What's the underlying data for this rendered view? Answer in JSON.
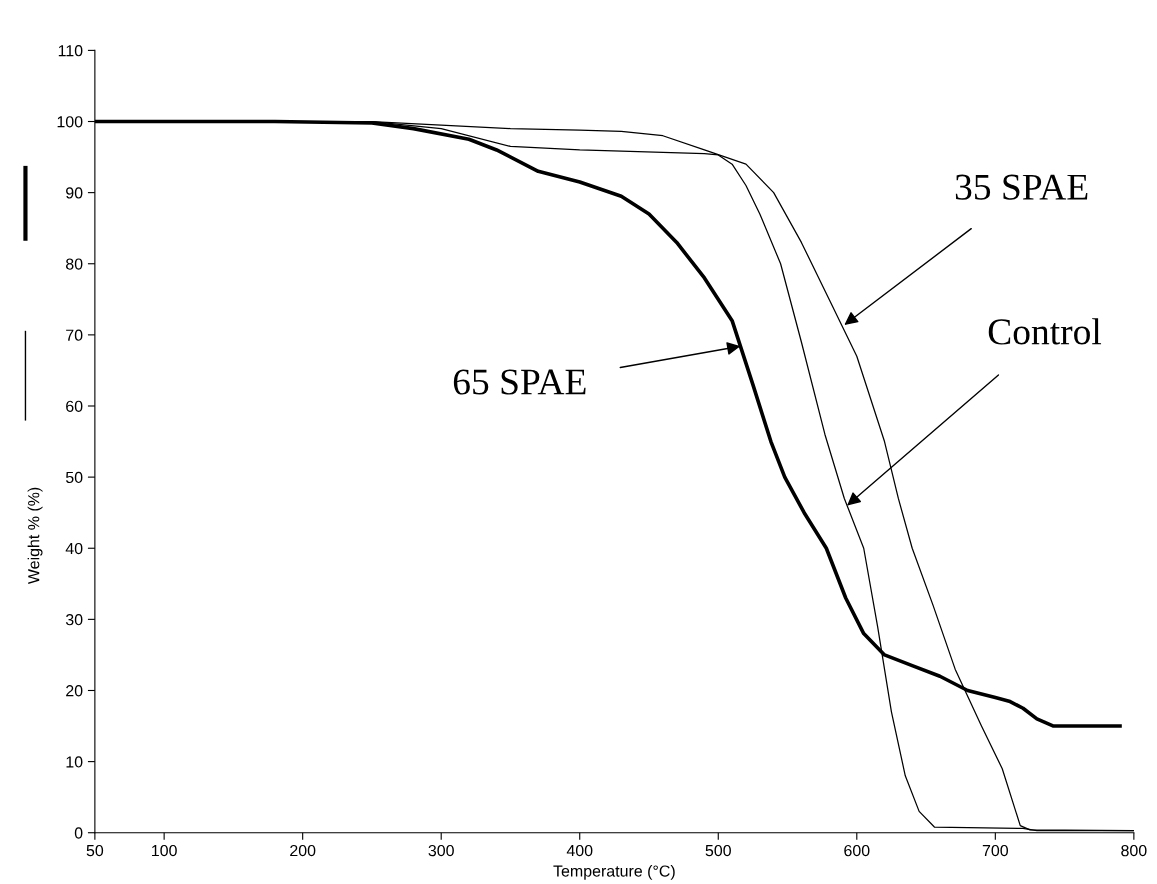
{
  "chart_data": {
    "type": "line",
    "xlabel": "Temperature (°C)",
    "ylabel": "Weight % (%)",
    "xlim": [
      50,
      800
    ],
    "ylim": [
      0,
      110
    ],
    "xticks": [
      50,
      100,
      200,
      300,
      400,
      500,
      600,
      700,
      800
    ],
    "yticks": [
      0,
      10,
      20,
      30,
      40,
      50,
      60,
      70,
      80,
      90,
      100,
      110
    ],
    "grid": false,
    "legend": false,
    "marker": "none",
    "line_style": "solid",
    "series": [
      {
        "color": "#000000",
        "x": [
          50,
          180,
          250,
          280,
          320,
          340,
          370,
          400,
          430,
          450,
          470,
          490,
          510,
          525,
          538,
          548,
          562,
          578,
          592,
          605,
          620,
          640,
          660,
          680,
          700,
          710,
          720,
          730,
          742,
          790
        ],
        "values": [
          100,
          100,
          99.8,
          99,
          97.5,
          96,
          93,
          91.5,
          89.5,
          87,
          83,
          78,
          72,
          63,
          55,
          50,
          45,
          40,
          33,
          28,
          25,
          23.5,
          22,
          20,
          19,
          18.5,
          17.5,
          16,
          15,
          15
        ]
      },
      {
        "color": "#000000",
        "x": [
          50,
          250,
          300,
          350,
          400,
          430,
          460,
          490,
          520,
          540,
          560,
          580,
          600,
          620,
          630,
          640,
          655,
          671,
          690,
          705,
          718,
          725,
          800
        ],
        "values": [
          100,
          100,
          99.5,
          99,
          98.8,
          98.6,
          98,
          96,
          94,
          90,
          83,
          75,
          67,
          55,
          47,
          40,
          32,
          23,
          15,
          9,
          1,
          0.4,
          0.3
        ]
      },
      {
        "color": "#000000",
        "x": [
          50,
          250,
          300,
          350,
          400,
          490,
          500,
          510,
          520,
          530,
          545,
          560,
          577,
          591,
          605,
          615,
          625,
          635,
          645,
          656,
          720,
          730,
          800
        ],
        "values": [
          100,
          100,
          99,
          96.5,
          96,
          95.5,
          95.3,
          94,
          91,
          87,
          80,
          69,
          56,
          47,
          40,
          29,
          17,
          8,
          3,
          0.8,
          0.6,
          0.3,
          0.3
        ]
      }
    ],
    "annotations": [
      {
        "text": "35 SPAE",
        "x": 591,
        "y": 71.4
      },
      {
        "text": "Control",
        "x": 593,
        "y": 46
      },
      {
        "text": "65 SPAE",
        "x": 516,
        "y": 68.4
      }
    ]
  }
}
